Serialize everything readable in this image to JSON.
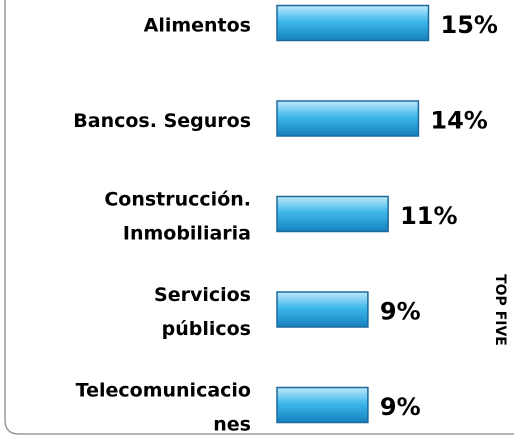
{
  "chart_data": {
    "type": "bar",
    "orientation": "horizontal",
    "categories": [
      [
        "Alimentos"
      ],
      [
        "Bancos. Seguros"
      ],
      [
        "Construcción.",
        "Inmobiliaria"
      ],
      [
        "Servicios",
        "públicos"
      ],
      [
        "Telecomunicacio",
        "nes"
      ]
    ],
    "values": [
      15,
      14,
      11,
      9,
      9
    ],
    "value_labels": [
      "15%",
      "14%",
      "11%",
      "9%",
      "9%"
    ],
    "color": "#29a9e0",
    "annotation": "TOP FIVE"
  }
}
